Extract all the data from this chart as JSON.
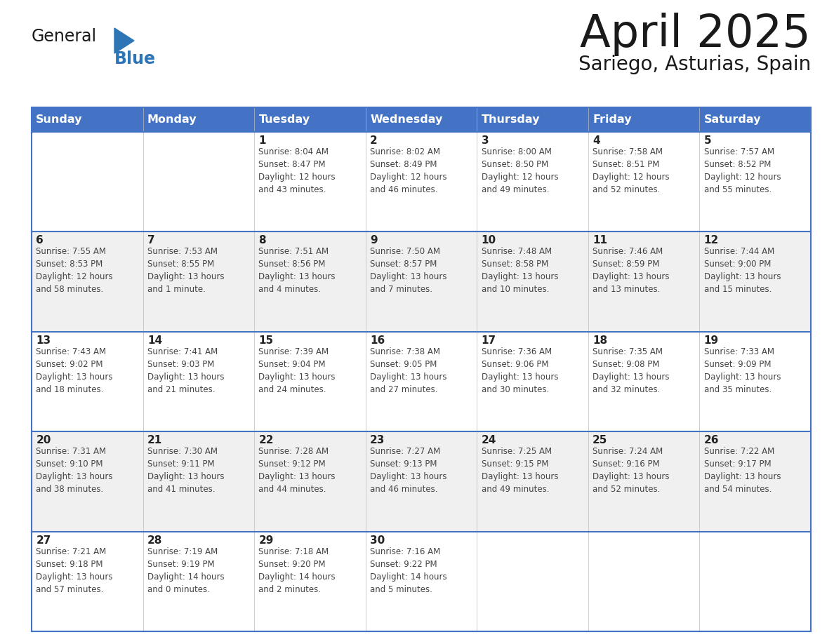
{
  "title": "April 2025",
  "subtitle": "Sariego, Asturias, Spain",
  "days_of_week": [
    "Sunday",
    "Monday",
    "Tuesday",
    "Wednesday",
    "Thursday",
    "Friday",
    "Saturday"
  ],
  "header_bg": "#4472C4",
  "header_text": "#FFFFFF",
  "row_bg_odd": "#FFFFFF",
  "row_bg_even": "#F0F0F0",
  "row_line_color": "#4472C4",
  "text_color": "#444444",
  "day_num_color": "#222222",
  "logo_general_color": "#1a1a1a",
  "logo_blue_color": "#2E75B6",
  "title_color": "#1a1a1a",
  "calendar_data": [
    [
      {
        "day": null,
        "info": null
      },
      {
        "day": null,
        "info": null
      },
      {
        "day": 1,
        "info": "Sunrise: 8:04 AM\nSunset: 8:47 PM\nDaylight: 12 hours\nand 43 minutes."
      },
      {
        "day": 2,
        "info": "Sunrise: 8:02 AM\nSunset: 8:49 PM\nDaylight: 12 hours\nand 46 minutes."
      },
      {
        "day": 3,
        "info": "Sunrise: 8:00 AM\nSunset: 8:50 PM\nDaylight: 12 hours\nand 49 minutes."
      },
      {
        "day": 4,
        "info": "Sunrise: 7:58 AM\nSunset: 8:51 PM\nDaylight: 12 hours\nand 52 minutes."
      },
      {
        "day": 5,
        "info": "Sunrise: 7:57 AM\nSunset: 8:52 PM\nDaylight: 12 hours\nand 55 minutes."
      }
    ],
    [
      {
        "day": 6,
        "info": "Sunrise: 7:55 AM\nSunset: 8:53 PM\nDaylight: 12 hours\nand 58 minutes."
      },
      {
        "day": 7,
        "info": "Sunrise: 7:53 AM\nSunset: 8:55 PM\nDaylight: 13 hours\nand 1 minute."
      },
      {
        "day": 8,
        "info": "Sunrise: 7:51 AM\nSunset: 8:56 PM\nDaylight: 13 hours\nand 4 minutes."
      },
      {
        "day": 9,
        "info": "Sunrise: 7:50 AM\nSunset: 8:57 PM\nDaylight: 13 hours\nand 7 minutes."
      },
      {
        "day": 10,
        "info": "Sunrise: 7:48 AM\nSunset: 8:58 PM\nDaylight: 13 hours\nand 10 minutes."
      },
      {
        "day": 11,
        "info": "Sunrise: 7:46 AM\nSunset: 8:59 PM\nDaylight: 13 hours\nand 13 minutes."
      },
      {
        "day": 12,
        "info": "Sunrise: 7:44 AM\nSunset: 9:00 PM\nDaylight: 13 hours\nand 15 minutes."
      }
    ],
    [
      {
        "day": 13,
        "info": "Sunrise: 7:43 AM\nSunset: 9:02 PM\nDaylight: 13 hours\nand 18 minutes."
      },
      {
        "day": 14,
        "info": "Sunrise: 7:41 AM\nSunset: 9:03 PM\nDaylight: 13 hours\nand 21 minutes."
      },
      {
        "day": 15,
        "info": "Sunrise: 7:39 AM\nSunset: 9:04 PM\nDaylight: 13 hours\nand 24 minutes."
      },
      {
        "day": 16,
        "info": "Sunrise: 7:38 AM\nSunset: 9:05 PM\nDaylight: 13 hours\nand 27 minutes."
      },
      {
        "day": 17,
        "info": "Sunrise: 7:36 AM\nSunset: 9:06 PM\nDaylight: 13 hours\nand 30 minutes."
      },
      {
        "day": 18,
        "info": "Sunrise: 7:35 AM\nSunset: 9:08 PM\nDaylight: 13 hours\nand 32 minutes."
      },
      {
        "day": 19,
        "info": "Sunrise: 7:33 AM\nSunset: 9:09 PM\nDaylight: 13 hours\nand 35 minutes."
      }
    ],
    [
      {
        "day": 20,
        "info": "Sunrise: 7:31 AM\nSunset: 9:10 PM\nDaylight: 13 hours\nand 38 minutes."
      },
      {
        "day": 21,
        "info": "Sunrise: 7:30 AM\nSunset: 9:11 PM\nDaylight: 13 hours\nand 41 minutes."
      },
      {
        "day": 22,
        "info": "Sunrise: 7:28 AM\nSunset: 9:12 PM\nDaylight: 13 hours\nand 44 minutes."
      },
      {
        "day": 23,
        "info": "Sunrise: 7:27 AM\nSunset: 9:13 PM\nDaylight: 13 hours\nand 46 minutes."
      },
      {
        "day": 24,
        "info": "Sunrise: 7:25 AM\nSunset: 9:15 PM\nDaylight: 13 hours\nand 49 minutes."
      },
      {
        "day": 25,
        "info": "Sunrise: 7:24 AM\nSunset: 9:16 PM\nDaylight: 13 hours\nand 52 minutes."
      },
      {
        "day": 26,
        "info": "Sunrise: 7:22 AM\nSunset: 9:17 PM\nDaylight: 13 hours\nand 54 minutes."
      }
    ],
    [
      {
        "day": 27,
        "info": "Sunrise: 7:21 AM\nSunset: 9:18 PM\nDaylight: 13 hours\nand 57 minutes."
      },
      {
        "day": 28,
        "info": "Sunrise: 7:19 AM\nSunset: 9:19 PM\nDaylight: 14 hours\nand 0 minutes."
      },
      {
        "day": 29,
        "info": "Sunrise: 7:18 AM\nSunset: 9:20 PM\nDaylight: 14 hours\nand 2 minutes."
      },
      {
        "day": 30,
        "info": "Sunrise: 7:16 AM\nSunset: 9:22 PM\nDaylight: 14 hours\nand 5 minutes."
      },
      {
        "day": null,
        "info": null
      },
      {
        "day": null,
        "info": null
      },
      {
        "day": null,
        "info": null
      }
    ]
  ]
}
